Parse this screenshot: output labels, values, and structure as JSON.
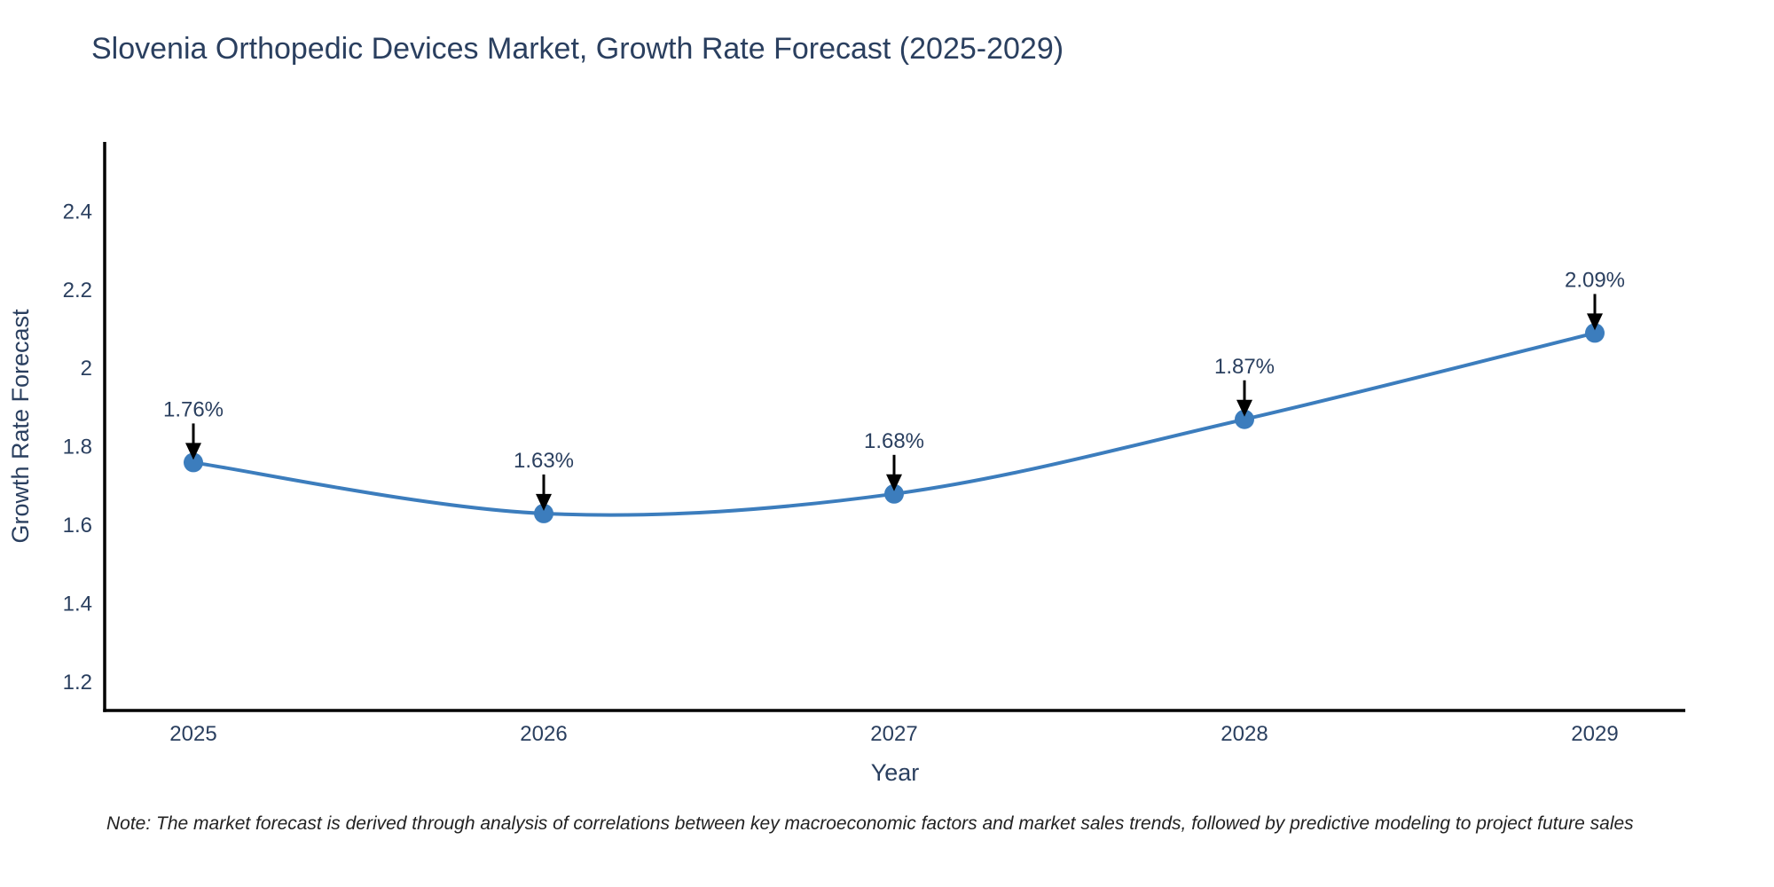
{
  "title": "Slovenia Orthopedic Devices Market, Growth Rate Forecast (2025-2029)",
  "note": "Note: The market forecast is derived through analysis of correlations between key macroeconomic factors and market sales trends, followed by predictive modeling to project future sales",
  "chart_data": {
    "type": "line",
    "line_shape": "spline",
    "x": [
      2025,
      2026,
      2027,
      2028,
      2029
    ],
    "x_labels": [
      "2025",
      "2026",
      "2027",
      "2028",
      "2029"
    ],
    "series": [
      {
        "name": "Growth Rate Forecast",
        "values": [
          1.76,
          1.63,
          1.68,
          1.87,
          2.09
        ]
      }
    ],
    "point_labels": [
      "1.76%",
      "1.63%",
      "1.68%",
      "1.87%",
      "2.09%"
    ],
    "xlabel": "Year",
    "ylabel": "Growth Rate Forecast",
    "yticks": [
      1.2,
      1.4,
      1.6,
      1.8,
      2,
      2.2,
      2.4
    ],
    "ytick_labels": [
      "1.2",
      "1.4",
      "1.6",
      "1.8",
      "2",
      "2.2",
      "2.4"
    ],
    "ylim": [
      1.128,
      2.577
    ],
    "grid": false,
    "legend_position": "none",
    "colors": {
      "line": "#3c7dbd",
      "marker": "#3c7dbd",
      "arrow": "#000000",
      "axis_line": "#000000",
      "text": "#2a3f5f",
      "note_text": "#222222"
    }
  }
}
